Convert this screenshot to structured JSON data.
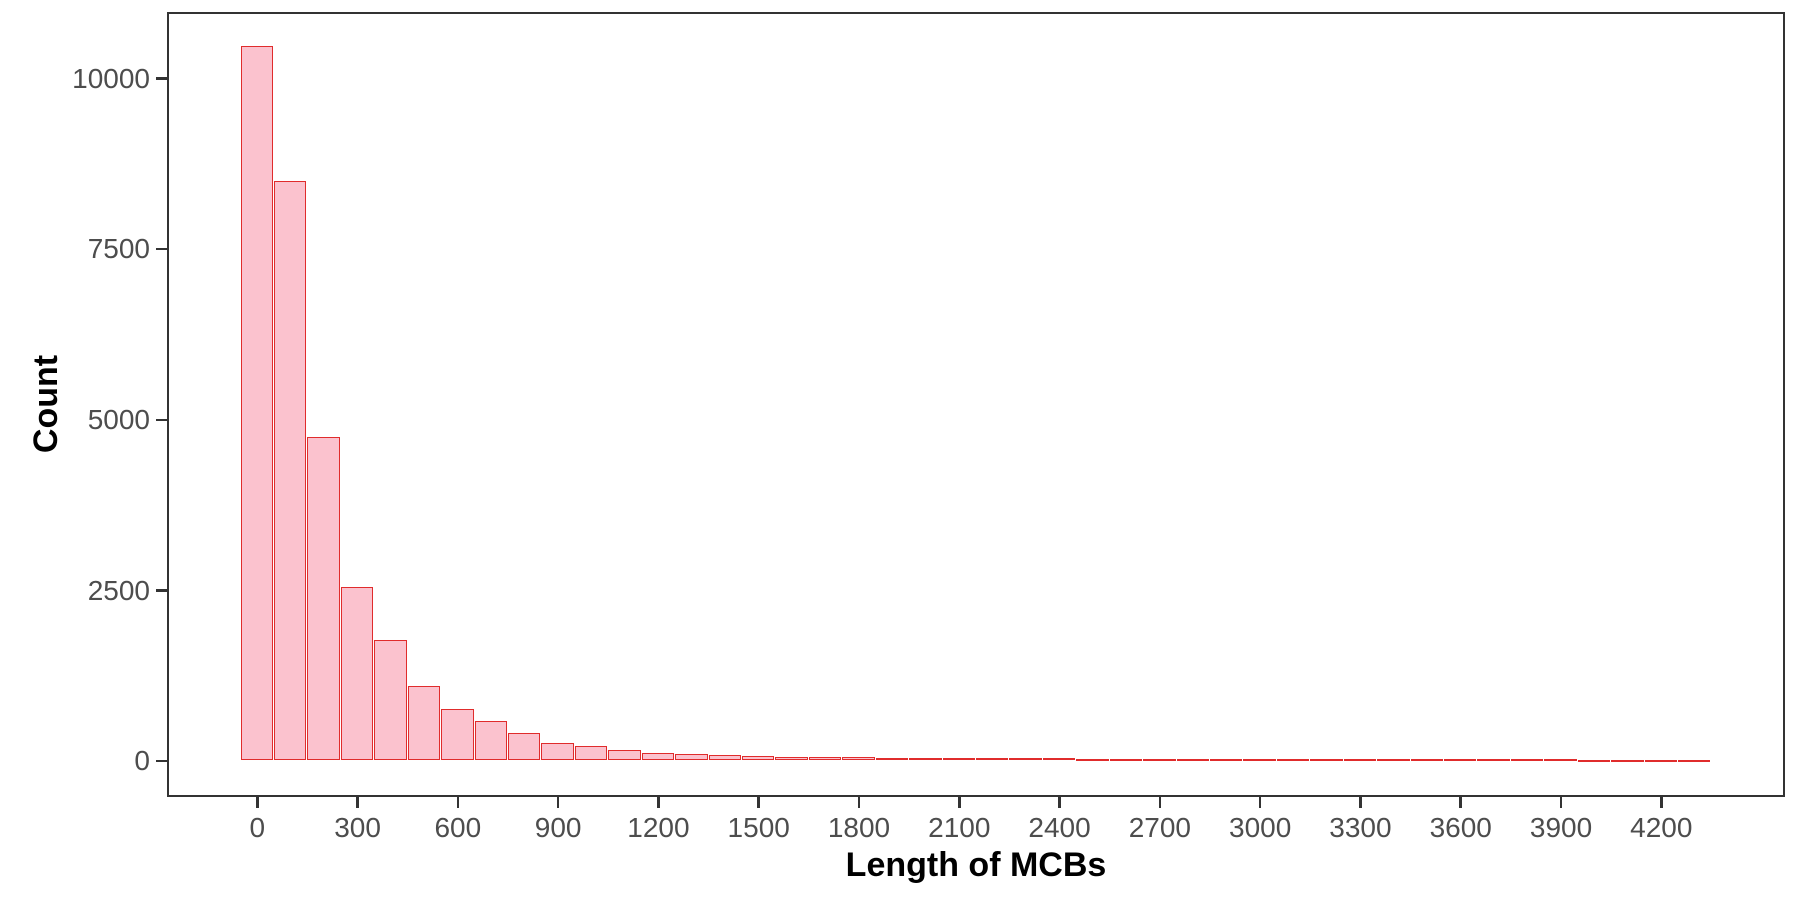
{
  "chart_data": {
    "type": "bar",
    "subtype": "histogram",
    "title": "",
    "xlabel": "Length of MCBs",
    "ylabel": "Count",
    "bin_width": 100,
    "bin_centers": [
      0,
      100,
      200,
      300,
      400,
      500,
      600,
      700,
      800,
      900,
      1000,
      1100,
      1200,
      1300,
      1400,
      1500,
      1600,
      1700,
      1800,
      1900,
      2000,
      2100,
      2200,
      2300,
      2400,
      2500,
      2600,
      2700,
      2800,
      2900,
      3000,
      3100,
      3200,
      3300,
      3400,
      3500,
      3600,
      3700,
      3800,
      3900,
      4000,
      4100,
      4200,
      4300
    ],
    "values": [
      10450,
      8480,
      4720,
      2530,
      1760,
      1080,
      740,
      570,
      390,
      250,
      200,
      145,
      100,
      80,
      65,
      55,
      45,
      40,
      35,
      30,
      28,
      25,
      22,
      20,
      18,
      15,
      12,
      10,
      10,
      8,
      8,
      6,
      6,
      5,
      5,
      4,
      4,
      3,
      3,
      3,
      2,
      2,
      2,
      2
    ],
    "xlim": [
      -270,
      4570
    ],
    "ylim": [
      -525,
      10975
    ],
    "xticks": [
      0,
      300,
      600,
      900,
      1200,
      1500,
      1800,
      2100,
      2400,
      2700,
      3000,
      3300,
      3600,
      3900,
      4200
    ],
    "xtick_labels": [
      "0",
      "300",
      "600",
      "900",
      "1200",
      "1500",
      "1800",
      "2100",
      "2400",
      "2700",
      "3000",
      "3300",
      "3600",
      "3900",
      "4200"
    ],
    "yticks": [
      0,
      2500,
      5000,
      7500,
      10000
    ],
    "ytick_labels": [
      "0",
      "2500",
      "5000",
      "7500",
      "10000"
    ],
    "grid": "off",
    "legend": "none",
    "colors": {
      "bar_fill": "#FBC2CE",
      "bar_border": "#E02C2C",
      "panel_border": "#333333",
      "tick_mark": "#333333",
      "tick_label": "#4D4D4D",
      "axis_title": "#000000",
      "background": "#FFFFFF"
    }
  }
}
